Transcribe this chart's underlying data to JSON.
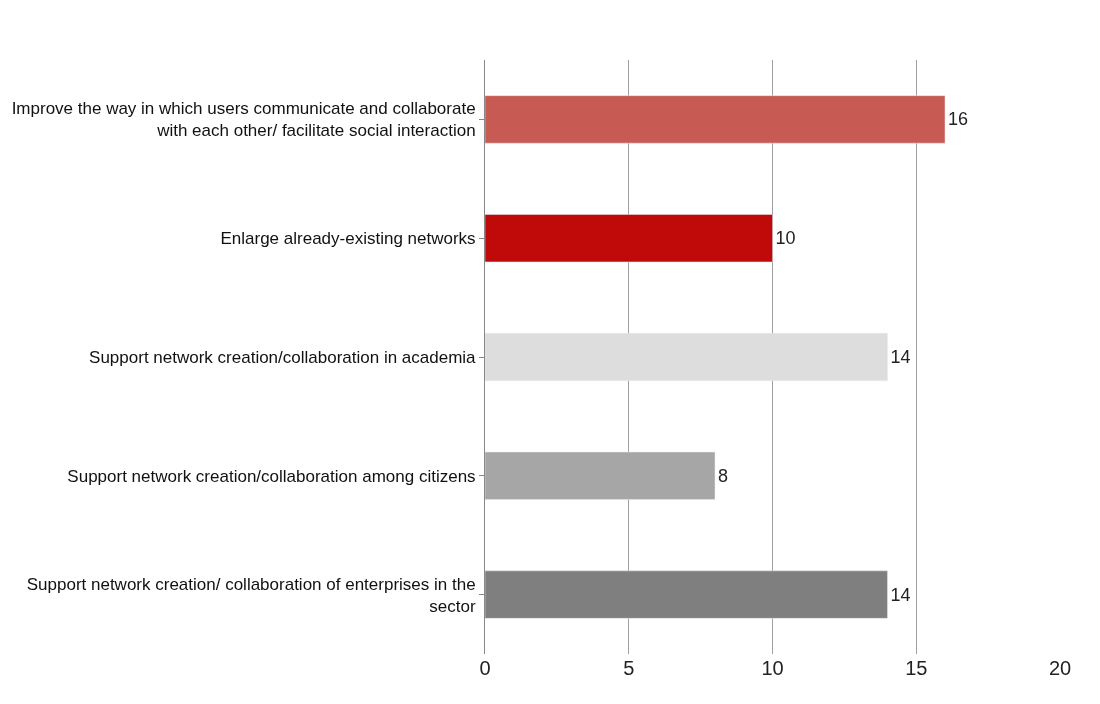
{
  "chart_data": {
    "type": "bar",
    "orientation": "horizontal",
    "categories": [
      "Improve the way in which users communicate and collaborate with each other/ facilitate social interaction",
      "Enlarge already-existing networks",
      "Support network creation/collaboration in academia",
      "Support network creation/collaboration among citizens",
      "Support network creation/ collaboration of enterprises in the sector"
    ],
    "values": [
      16,
      10,
      14,
      8,
      14
    ],
    "colors": [
      "#c85a54",
      "#c00a0a",
      "#dddddd",
      "#a6a6a6",
      "#7f7f7f"
    ],
    "xlim": [
      0,
      20
    ],
    "xticks": [
      0,
      5,
      10,
      15,
      20
    ],
    "grid": "x",
    "data_labels": true
  }
}
